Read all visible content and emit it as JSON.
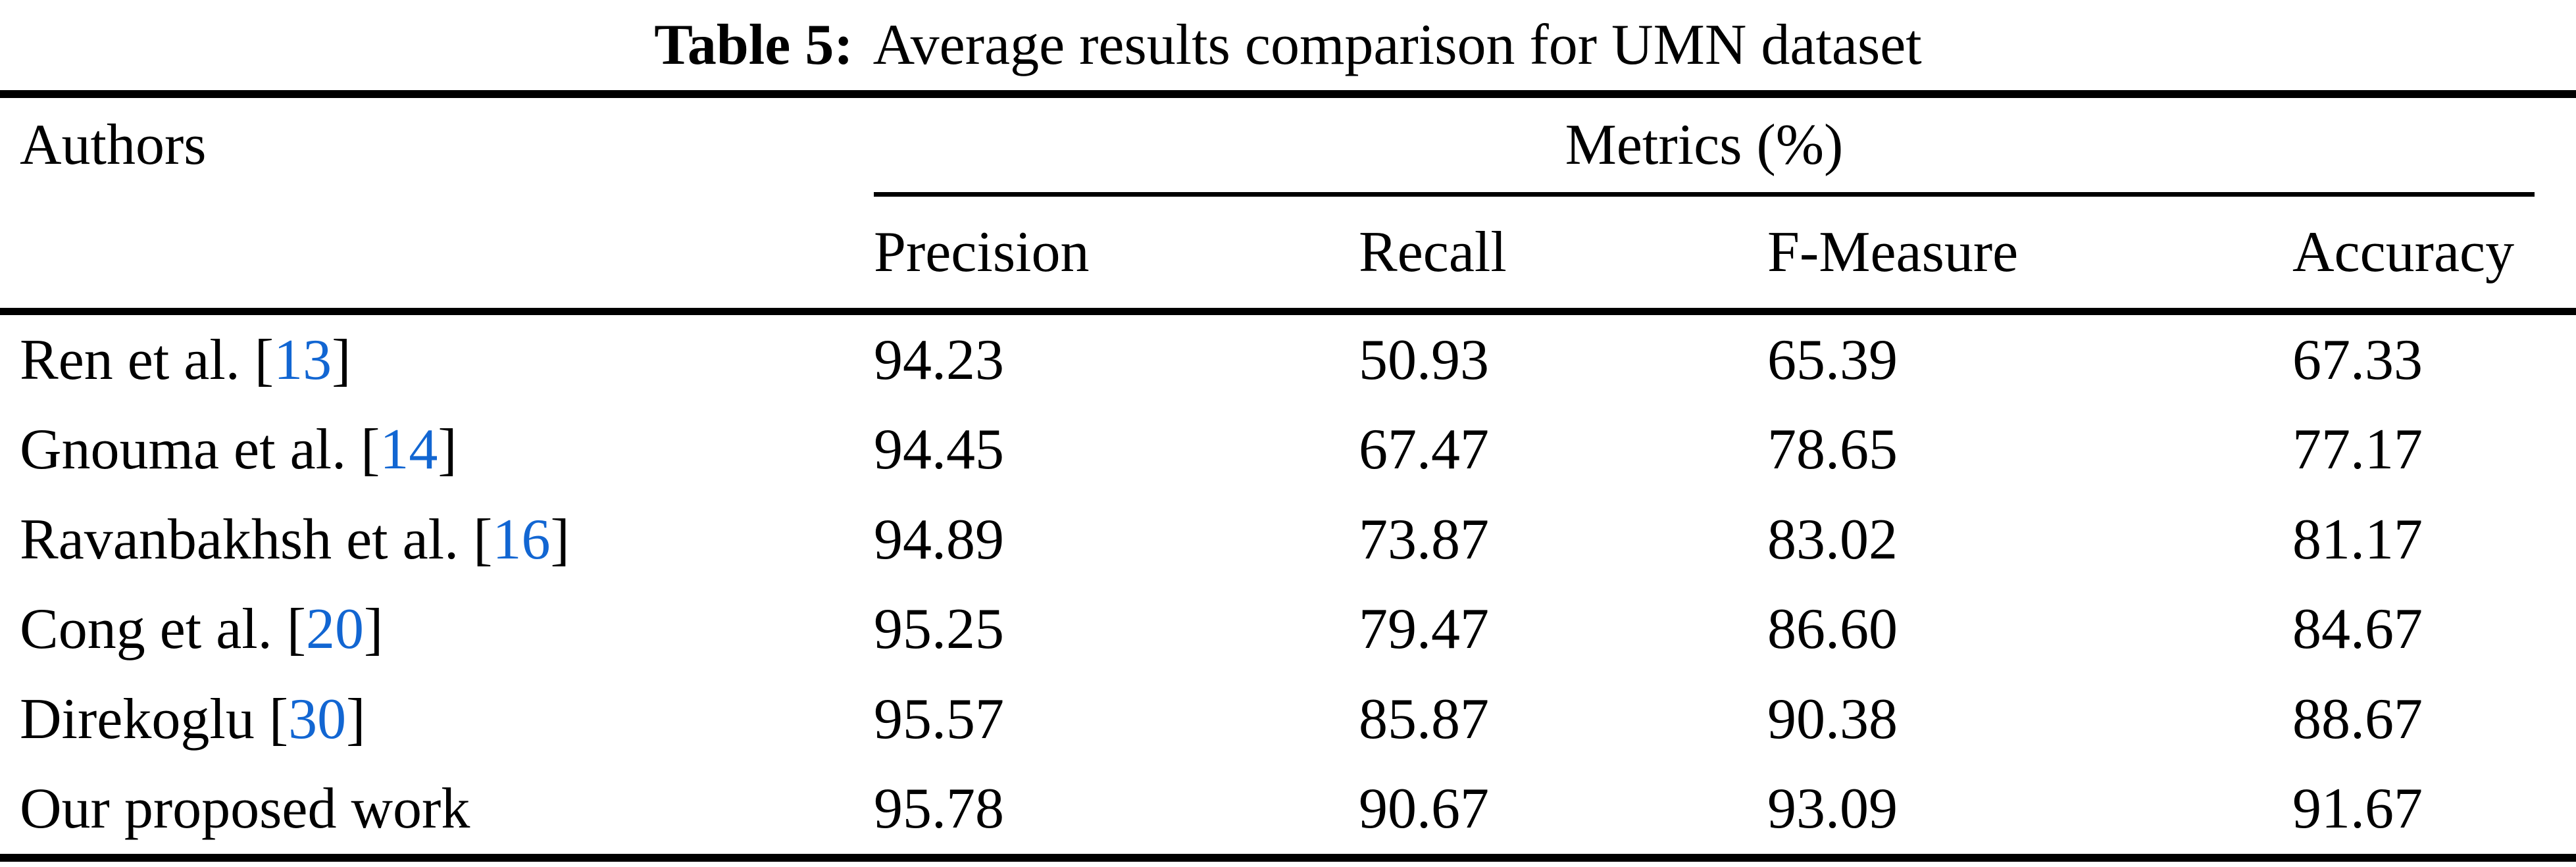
{
  "page": {
    "background": "#ffffff",
    "text_color": "#000000"
  },
  "caption": {
    "label": "Table 5:",
    "text": "Average results comparison for UMN dataset"
  },
  "table": {
    "col_group_author": "Authors",
    "col_group_metrics": "Metrics (%)",
    "columns": {
      "precision": "Precision",
      "recall": "Recall",
      "f_measure": "F-Measure",
      "accuracy": "Accuracy"
    },
    "bracket_open": "[",
    "bracket_close": "]",
    "citation_color": "#1266d2",
    "rows": [
      {
        "author": "Ren et al.",
        "cite": "13",
        "precision": "94.23",
        "recall": "50.93",
        "f_measure": "65.39",
        "accuracy": "67.33"
      },
      {
        "author": "Gnouma et al.",
        "cite": "14",
        "precision": "94.45",
        "recall": "67.47",
        "f_measure": "78.65",
        "accuracy": "77.17"
      },
      {
        "author": "Ravanbakhsh et al.",
        "cite": "16",
        "precision": "94.89",
        "recall": "73.87",
        "f_measure": "83.02",
        "accuracy": "81.17"
      },
      {
        "author": "Cong et al.",
        "cite": "20",
        "precision": "95.25",
        "recall": "79.47",
        "f_measure": "86.60",
        "accuracy": "84.67"
      },
      {
        "author": "Direkoglu",
        "cite": "30",
        "precision": "95.57",
        "recall": "85.87",
        "f_measure": "90.38",
        "accuracy": "88.67"
      },
      {
        "author": "Our proposed work",
        "cite": null,
        "precision": "95.78",
        "recall": "90.67",
        "f_measure": "93.09",
        "accuracy": "91.67"
      }
    ]
  }
}
